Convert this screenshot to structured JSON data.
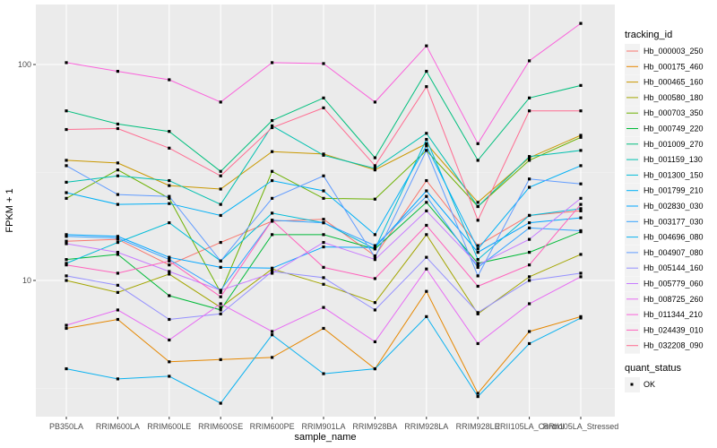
{
  "chart_data": {
    "type": "line",
    "title": "",
    "xlabel": "sample_name",
    "ylabel": "FPKM + 1",
    "yscale": "log10",
    "ylim": [
      2.4,
      170
    ],
    "yticks": [
      10,
      100
    ],
    "ytick_labels": [
      "10",
      "100"
    ],
    "grid": true,
    "categories": [
      "PB350LA",
      "RRIM600LA",
      "RRIM600LE",
      "RRIM600SE",
      "RRIM600PE",
      "RRIM901LA",
      "RRIM928BA",
      "RRIM928LA",
      "RRIM928LE",
      "RRII105LA_Control",
      "RRII105LA_Stressed"
    ],
    "legend": {
      "title": "tracking_id",
      "position": "right"
    },
    "shape_legend": {
      "title": "quant_status",
      "entries": [
        "OK"
      ]
    },
    "series": [
      {
        "name": "Hb_000003_250",
        "color": "#F8766D",
        "values": [
          15.2,
          15.5,
          11.8,
          15.0,
          18.8,
          19.2,
          13.0,
          29.0,
          14.5,
          20.0,
          21.0
        ]
      },
      {
        "name": "Hb_000175_460",
        "color": "#E58700",
        "values": [
          6.0,
          6.6,
          4.2,
          4.3,
          4.4,
          6.0,
          3.9,
          8.9,
          3.0,
          5.8,
          6.8
        ]
      },
      {
        "name": "Hb_000465_160",
        "color": "#C99800",
        "values": [
          36.0,
          35.0,
          27.5,
          26.5,
          39.5,
          38.5,
          32.5,
          43.0,
          23.0,
          37.0,
          47.0
        ]
      },
      {
        "name": "Hb_000580_180",
        "color": "#A3A500",
        "values": [
          10.0,
          8.8,
          10.7,
          7.5,
          11.3,
          9.6,
          7.9,
          16.3,
          7.0,
          10.4,
          13.2
        ]
      },
      {
        "name": "Hb_000703_350",
        "color": "#6BB100",
        "values": [
          24.0,
          32.5,
          24.0,
          8.8,
          32.0,
          24.0,
          23.8,
          40.0,
          22.0,
          36.0,
          46.0
        ]
      },
      {
        "name": "Hb_000749_220",
        "color": "#00BA38",
        "values": [
          12.5,
          13.2,
          8.5,
          7.3,
          16.3,
          16.3,
          14.0,
          23.0,
          12.0,
          13.5,
          16.8
        ]
      },
      {
        "name": "Hb_001009_270",
        "color": "#00BF7D",
        "values": [
          61.0,
          53.0,
          49.0,
          32.0,
          55.0,
          70.0,
          37.0,
          93.0,
          36.0,
          70.0,
          80.0
        ]
      },
      {
        "name": "Hb_001159_130",
        "color": "#00C0AF",
        "values": [
          28.5,
          30.5,
          29.0,
          22.5,
          52.0,
          38.0,
          33.0,
          48.0,
          22.0,
          37.5,
          40.0
        ]
      },
      {
        "name": "Hb_001300_150",
        "color": "#00BCD8",
        "values": [
          12.0,
          15.0,
          18.5,
          12.3,
          20.5,
          18.5,
          14.0,
          45.0,
          12.5,
          20.0,
          21.5
        ]
      },
      {
        "name": "Hb_001799_210",
        "color": "#00B0F6",
        "values": [
          25.5,
          22.5,
          22.7,
          20.0,
          29.0,
          26.0,
          16.3,
          42.0,
          14.0,
          27.0,
          34.0
        ]
      },
      {
        "name": "Hb_002830_030",
        "color": "#00A5FF",
        "values": [
          16.3,
          16.0,
          12.8,
          11.5,
          11.4,
          14.3,
          14.2,
          26.0,
          13.5,
          18.5,
          19.5
        ]
      },
      {
        "name": "Hb_003177_030",
        "color": "#35A2FF",
        "values": [
          16.0,
          15.7,
          12.5,
          9.0,
          19.0,
          18.5,
          14.5,
          24.5,
          11.5,
          17.5,
          17.0
        ]
      },
      {
        "name": "Hb_004696_080",
        "color": "#0BB2F0",
        "values": [
          3.9,
          3.5,
          3.6,
          2.7,
          5.6,
          3.7,
          3.9,
          6.8,
          2.9,
          5.1,
          6.7
        ]
      },
      {
        "name": "Hb_004907_080",
        "color": "#619CFF",
        "values": [
          34.0,
          25.0,
          24.5,
          12.3,
          24.0,
          30.5,
          12.8,
          40.0,
          10.5,
          29.5,
          28.0
        ]
      },
      {
        "name": "Hb_005144_160",
        "color": "#9590FF",
        "values": [
          10.5,
          9.5,
          6.6,
          7.0,
          11.0,
          10.3,
          7.3,
          12.8,
          7.1,
          10.0,
          10.8
        ]
      },
      {
        "name": "Hb_005779_060",
        "color": "#C77CFF",
        "values": [
          14.8,
          13.5,
          11.0,
          9.0,
          10.8,
          15.0,
          12.5,
          21.0,
          11.8,
          15.5,
          24.0
        ]
      },
      {
        "name": "Hb_008725_260",
        "color": "#E76BF3",
        "values": [
          6.2,
          7.3,
          5.3,
          7.8,
          5.8,
          7.5,
          5.2,
          11.3,
          5.1,
          7.8,
          10.4
        ]
      },
      {
        "name": "Hb_011344_210",
        "color": "#FA62DB",
        "values": [
          102.0,
          93.0,
          85.0,
          67.0,
          102.0,
          101.0,
          67.0,
          122.0,
          43.0,
          104.0,
          155.0
        ]
      },
      {
        "name": "Hb_024439_010",
        "color": "#FF62BC",
        "values": [
          11.8,
          10.8,
          12.3,
          8.4,
          19.0,
          11.5,
          10.2,
          18.0,
          9.4,
          11.8,
          22.5
        ]
      },
      {
        "name": "Hb_032208_090",
        "color": "#FF6C91",
        "values": [
          50.0,
          50.5,
          41.0,
          30.5,
          51.0,
          63.0,
          34.0,
          79.0,
          19.0,
          61.0,
          61.0
        ]
      }
    ]
  }
}
